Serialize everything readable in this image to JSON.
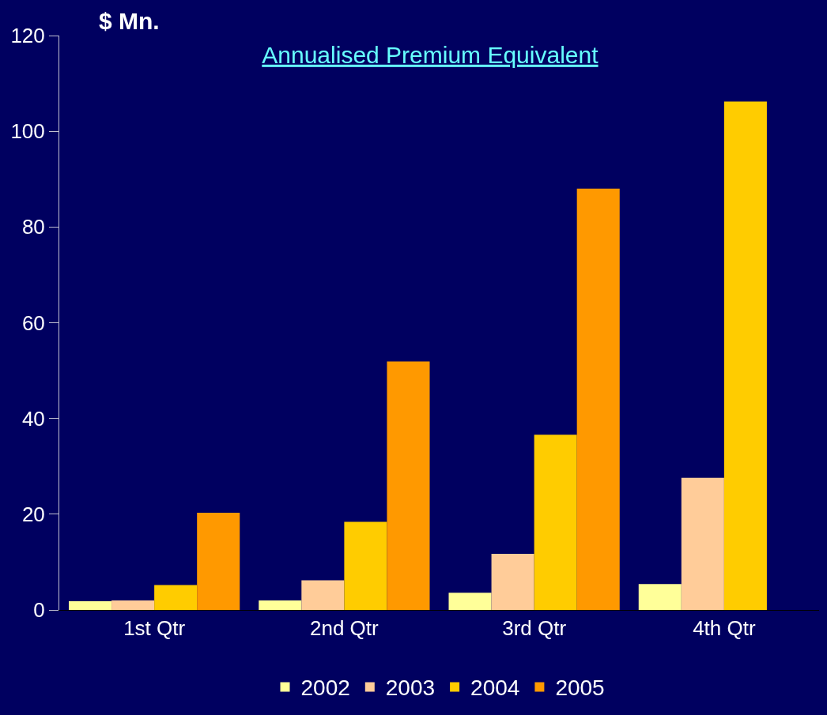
{
  "chart_data": {
    "type": "bar",
    "title": "Annualised Premium Equivalent",
    "ylabel": "$ Mn.",
    "categories": [
      "1st Qtr",
      "2nd Qtr",
      "3rd Qtr",
      "4th Qtr"
    ],
    "series": [
      {
        "name": "2002",
        "color": "#ffff99",
        "values": [
          1.8,
          2.0,
          3.6,
          5.4
        ]
      },
      {
        "name": "2003",
        "color": "#ffcc99",
        "values": [
          2.0,
          6.2,
          11.7,
          27.6
        ]
      },
      {
        "name": "2004",
        "color": "#ffcc00",
        "values": [
          5.2,
          18.4,
          36.6,
          106.2
        ]
      },
      {
        "name": "2005",
        "color": "#ff9900",
        "values": [
          20.3,
          51.9,
          88.0,
          null
        ]
      }
    ],
    "ylim": [
      0,
      120
    ],
    "yticks": [
      0,
      20,
      40,
      60,
      80,
      100,
      120
    ],
    "grid": false,
    "legend": "bottom"
  }
}
